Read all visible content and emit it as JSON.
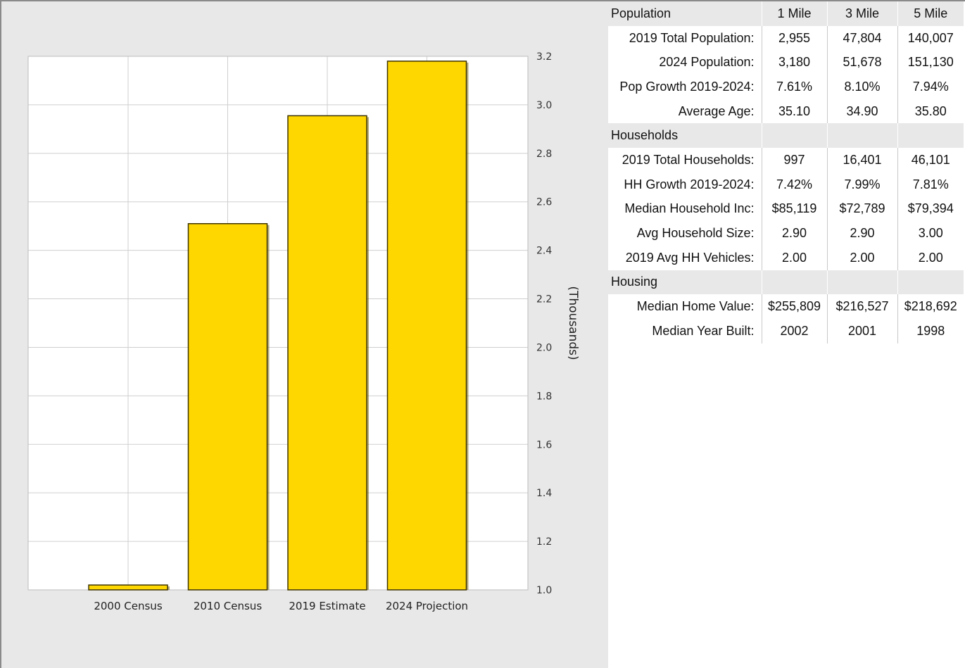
{
  "chart_data": {
    "type": "bar",
    "categories": [
      "2000 Census",
      "2010 Census",
      "2019 Estimate",
      "2024 Projection"
    ],
    "values": [
      1.02,
      2.51,
      2.955,
      3.18
    ],
    "ylabel": "(Thousands)",
    "ylim": [
      1.0,
      3.2
    ],
    "yticks": [
      "1.0",
      "1.2",
      "1.4",
      "1.6",
      "1.8",
      "2.0",
      "2.2",
      "2.4",
      "2.6",
      "2.8",
      "3.0",
      "3.2"
    ],
    "y_axis_side": "right",
    "grid": true,
    "bar_color": "#ffd700"
  },
  "table": {
    "sections": [
      {
        "title": "Population",
        "headers": [
          "1 Mile",
          "3 Mile",
          "5 Mile"
        ],
        "rows": [
          {
            "label": "2019 Total Population:",
            "values": [
              "2,955",
              "47,804",
              "140,007"
            ]
          },
          {
            "label": "2024 Population:",
            "values": [
              "3,180",
              "51,678",
              "151,130"
            ]
          },
          {
            "label": "Pop Growth 2019-2024:",
            "values": [
              "7.61%",
              "8.10%",
              "7.94%"
            ]
          },
          {
            "label": "Average Age:",
            "values": [
              "35.10",
              "34.90",
              "35.80"
            ]
          }
        ]
      },
      {
        "title": "Households",
        "headers": [
          "",
          "",
          ""
        ],
        "rows": [
          {
            "label": "2019 Total Households:",
            "values": [
              "997",
              "16,401",
              "46,101"
            ]
          },
          {
            "label": "HH Growth 2019-2024:",
            "values": [
              "7.42%",
              "7.99%",
              "7.81%"
            ]
          },
          {
            "label": "Median Household Inc:",
            "values": [
              "$85,119",
              "$72,789",
              "$79,394"
            ]
          },
          {
            "label": "Avg Household Size:",
            "values": [
              "2.90",
              "2.90",
              "3.00"
            ]
          },
          {
            "label": "2019 Avg HH Vehicles:",
            "values": [
              "2.00",
              "2.00",
              "2.00"
            ]
          }
        ]
      },
      {
        "title": "Housing",
        "headers": [
          "",
          "",
          ""
        ],
        "rows": [
          {
            "label": "Median Home Value:",
            "values": [
              "$255,809",
              "$216,527",
              "$218,692"
            ]
          },
          {
            "label": "Median Year Built:",
            "values": [
              "2002",
              "2001",
              "1998"
            ]
          }
        ]
      }
    ]
  }
}
